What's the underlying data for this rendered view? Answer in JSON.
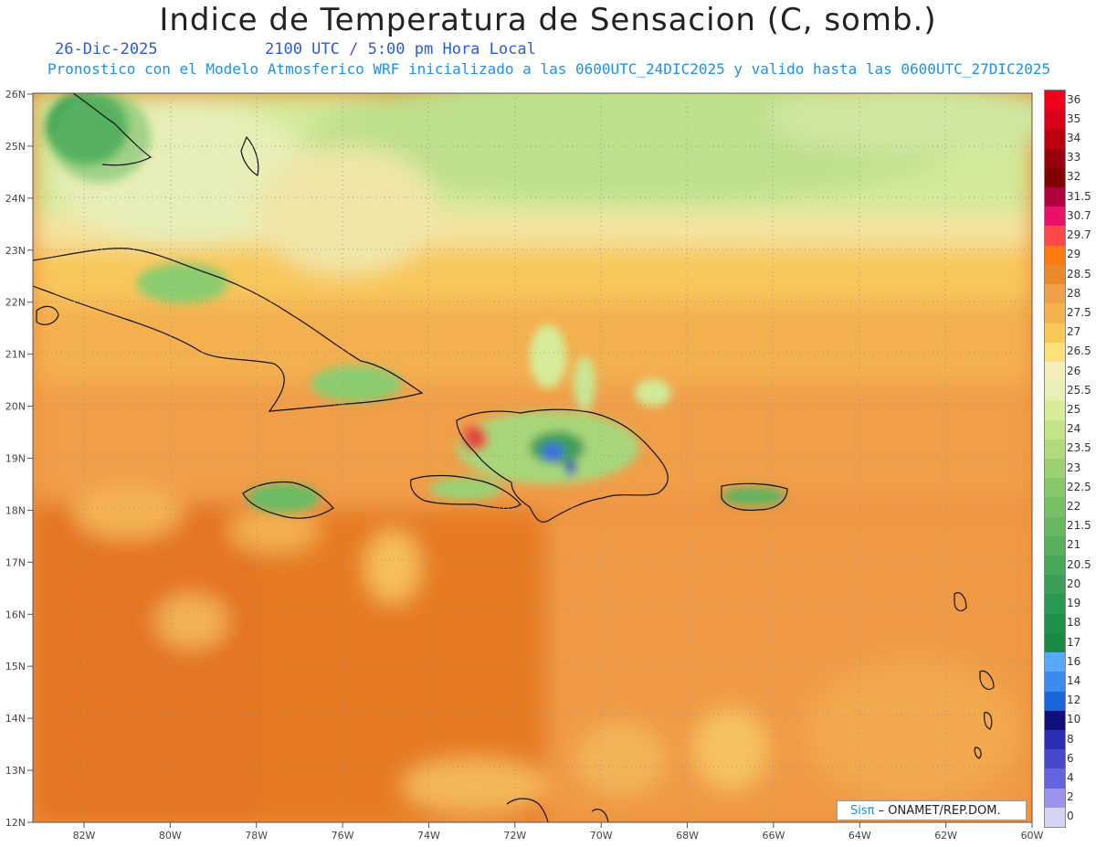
{
  "header": {
    "title": "Indice de Temperatura de Sensacion (C, somb.)",
    "date": "26-Dic-2025",
    "time": "2100 UTC / 5:00 pm Hora Local",
    "forecast": "Pronostico con el Modelo Atmosferico WRF inicializado a las 0600UTC_24DIC2025 y valido hasta las  0600UTC_27DIC2025"
  },
  "map": {
    "lon_range": [
      -83.2,
      -59.7
    ],
    "lat_range": [
      11.9,
      26.1
    ],
    "lat_labels": [
      "26N",
      "25N",
      "24N",
      "23N",
      "22N",
      "21N",
      "20N",
      "19N",
      "18N",
      "17N",
      "16N",
      "15N",
      "14N",
      "13N",
      "12N"
    ],
    "lon_labels": [
      "82W",
      "80W",
      "78W",
      "76W",
      "74W",
      "72W",
      "70W",
      "68W",
      "66W",
      "64W",
      "62W",
      "60W"
    ],
    "grid": true
  },
  "legend": {
    "labels": [
      "36",
      "35",
      "34",
      "33",
      "32",
      "31.5",
      "30.7",
      "29.7",
      "29",
      "28.5",
      "28",
      "27.5",
      "27",
      "26.5",
      "26",
      "25.5",
      "25",
      "24",
      "23.5",
      "23",
      "22.5",
      "22",
      "21.5",
      "21",
      "20.5",
      "20",
      "19",
      "18",
      "17",
      "16",
      "14",
      "12",
      "10",
      "8",
      "6",
      "4",
      "2",
      "0"
    ],
    "colors": [
      "#f0001a",
      "#d8001a",
      "#bb0010",
      "#980010",
      "#800000",
      "#b00040",
      "#e8106a",
      "#ff4848",
      "#ff7a10",
      "#e88a2c",
      "#f0a04a",
      "#f4b24e",
      "#f8c858",
      "#fbe07c",
      "#f4eebc",
      "#e8f0b8",
      "#d8ec98",
      "#c4e488",
      "#b0da7c",
      "#9cd072",
      "#88c66a",
      "#78c066",
      "#68b862",
      "#58b05e",
      "#48a85a",
      "#3aa057",
      "#2a9a52",
      "#1d9248",
      "#1a8a44",
      "#58a8ff",
      "#3c8cf0",
      "#1a64dc",
      "#10107c",
      "#2c2cb4",
      "#4848cc",
      "#6464de",
      "#9c94ec",
      "#d6d4f4"
    ]
  },
  "credit": {
    "logo": "Sisπ",
    "text": "– ONAMET/REP.DOM."
  }
}
